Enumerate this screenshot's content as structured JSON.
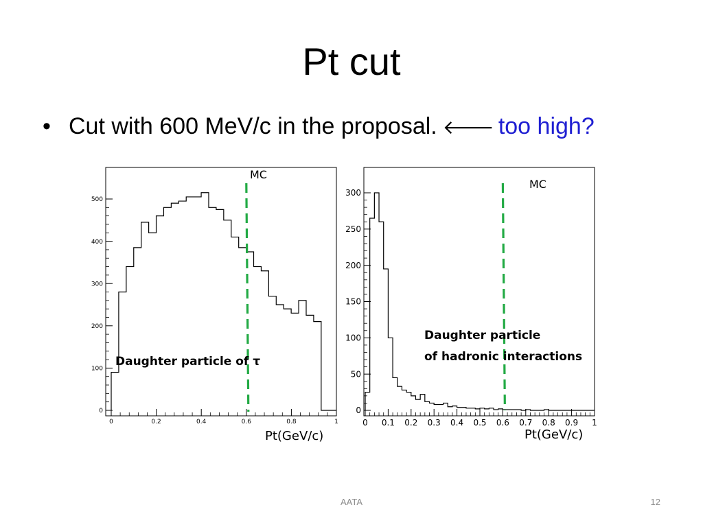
{
  "slide": {
    "title": "Pt cut",
    "bullet": {
      "marker": "•",
      "text": "Cut with 600 MeV/c in the proposal.",
      "arrow": "🡐",
      "highlight": "too high?",
      "highlight_color": "#1f1fd2"
    },
    "footer": {
      "center": "AATA",
      "page": "12"
    }
  },
  "chart_data": [
    {
      "type": "histogram",
      "mc_label": "MC",
      "annotation": "Daughter particle  of τ",
      "xlabel": "Pt(GeV/c)",
      "xlim": [
        0,
        1
      ],
      "ylim": [
        0,
        580
      ],
      "x_ticks": [
        0,
        0.2,
        0.4,
        0.6,
        0.8,
        1
      ],
      "x_tick_labels": [
        "0",
        "0.2",
        "0.4",
        "0.6",
        "0.8",
        "1"
      ],
      "y_ticks": [
        0,
        100,
        200,
        300,
        400,
        500
      ],
      "y_tick_labels": [
        "0",
        "100",
        "200",
        "300",
        "400",
        "500"
      ],
      "bin_width": 0.0333,
      "values": [
        90,
        280,
        340,
        385,
        445,
        420,
        460,
        480,
        490,
        495,
        505,
        505,
        515,
        480,
        475,
        450,
        410,
        385,
        375,
        340,
        330,
        270,
        250,
        240,
        230,
        260,
        225,
        210,
        0,
        0
      ],
      "cut_line_x": 0.6,
      "cut_color": "#22aa44"
    },
    {
      "type": "histogram",
      "mc_label": "MC",
      "annotation_lines": [
        "Daughter particle",
        "of  hadronic interactions"
      ],
      "xlabel": "Pt(GeV/c)",
      "xlim": [
        0,
        1
      ],
      "ylim": [
        0,
        330
      ],
      "x_ticks": [
        0,
        0.1,
        0.2,
        0.3,
        0.4,
        0.5,
        0.6,
        0.7,
        0.8,
        0.9,
        1
      ],
      "x_tick_labels": [
        "0",
        "0.1",
        "0.2",
        "0.3",
        "0.4",
        "0.5",
        "0.6",
        "0.7",
        "0.8",
        "0.9",
        "1"
      ],
      "y_ticks": [
        0,
        50,
        100,
        150,
        200,
        250,
        300
      ],
      "y_tick_labels": [
        "0",
        "50",
        "100",
        "150",
        "200",
        "250",
        "300"
      ],
      "bin_width": 0.02,
      "values": [
        25,
        265,
        300,
        260,
        195,
        100,
        45,
        33,
        28,
        25,
        20,
        15,
        22,
        12,
        10,
        8,
        8,
        10,
        5,
        6,
        4,
        4,
        3,
        3,
        2,
        3,
        2,
        3,
        1,
        2,
        1,
        1,
        1,
        1,
        0,
        1,
        0,
        0,
        0,
        1,
        0,
        0,
        0,
        0,
        0,
        0,
        0,
        0,
        0,
        0
      ],
      "cut_line_x": 0.6,
      "cut_color": "#22aa44"
    }
  ]
}
